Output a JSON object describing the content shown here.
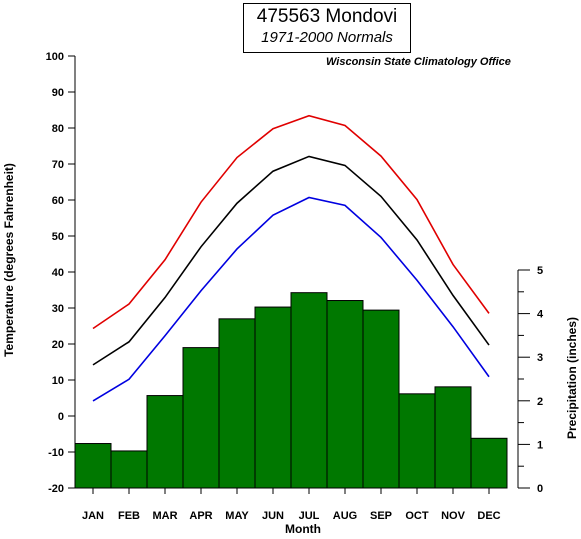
{
  "title": "475563 Mondovi",
  "subtitle": "1971-2000 Normals",
  "source": "Wisconsin State Climatology Office",
  "chart_data": {
    "type": "line",
    "categories": [
      "JAN",
      "FEB",
      "MAR",
      "APR",
      "MAY",
      "JUN",
      "JUL",
      "AUG",
      "SEP",
      "OCT",
      "NOV",
      "DEC"
    ],
    "xlabel": "Month",
    "ylabel": "Temperature (degrees Fahrenheit)",
    "ylim": [
      -20,
      100
    ],
    "yticks": [
      -20,
      -10,
      0,
      10,
      20,
      30,
      40,
      50,
      60,
      70,
      80,
      90,
      100
    ],
    "y2label": "Precipitation (inches)",
    "y2lim": [
      0,
      5
    ],
    "y2ticks": [
      0,
      1,
      2,
      3,
      4,
      5
    ],
    "series": [
      {
        "type": "line",
        "color": "#e00000",
        "values": [
          24.3,
          31.1,
          43.4,
          59.4,
          71.8,
          79.8,
          83.4,
          80.7,
          72.2,
          60.1,
          42.1,
          28.5
        ]
      },
      {
        "type": "line",
        "color": "#000000",
        "values": [
          14.2,
          20.6,
          32.9,
          47.0,
          59.1,
          68.0,
          72.1,
          69.6,
          61.0,
          48.9,
          33.5,
          19.7
        ]
      },
      {
        "type": "line",
        "color": "#0000e0",
        "values": [
          4.2,
          10.2,
          22.3,
          34.8,
          46.4,
          55.8,
          60.7,
          58.5,
          49.6,
          37.7,
          24.8,
          10.9
        ]
      },
      {
        "type": "bar",
        "axis": "right",
        "color": "#007800",
        "values": [
          1.02,
          0.85,
          2.12,
          3.22,
          3.88,
          4.15,
          4.48,
          4.3,
          4.08,
          2.16,
          2.32,
          1.14
        ]
      }
    ],
    "grid": false
  }
}
